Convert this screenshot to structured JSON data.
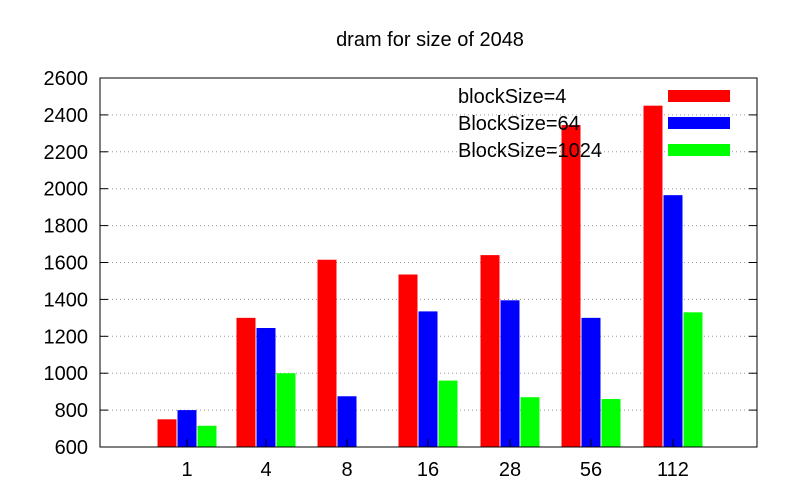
{
  "chart_data": {
    "type": "bar",
    "title": "dram for size of 2048",
    "xlabel": "",
    "ylabel": "",
    "categories": [
      "1",
      "4",
      "8",
      "16",
      "28",
      "56",
      "112"
    ],
    "ylim": [
      600,
      2600
    ],
    "yticks": [
      600,
      800,
      1000,
      1200,
      1400,
      1600,
      1800,
      2000,
      2200,
      2400,
      2600
    ],
    "grid": true,
    "legend_position": "top-right",
    "series": [
      {
        "name": "blockSize=4",
        "color": "#ff0000",
        "values": [
          750,
          1300,
          1615,
          1535,
          1640,
          2345,
          2450
        ]
      },
      {
        "name": "BlockSize=64",
        "color": "#0000ff",
        "values": [
          800,
          1245,
          875,
          1335,
          1395,
          1300,
          1965
        ]
      },
      {
        "name": "BlockSize=1024",
        "color": "#00ff00",
        "values": [
          715,
          1000,
          null,
          960,
          870,
          860,
          1330
        ]
      }
    ]
  }
}
